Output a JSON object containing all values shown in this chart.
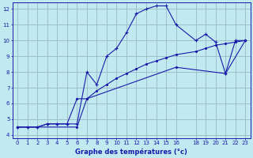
{
  "title": "Graphe des températures (°c)",
  "bg_color": "#c0eaf0",
  "grid_color": "#9ab8c8",
  "line_color": "#1a1aaa",
  "xlim": [
    -0.5,
    23.5
  ],
  "ylim": [
    3.8,
    12.4
  ],
  "xticks": [
    0,
    1,
    2,
    3,
    4,
    5,
    6,
    7,
    8,
    9,
    10,
    11,
    12,
    13,
    14,
    15,
    16,
    18,
    19,
    20,
    21,
    22,
    23
  ],
  "yticks": [
    4,
    5,
    6,
    7,
    8,
    9,
    10,
    11,
    12
  ],
  "line1_x": [
    0,
    1,
    2,
    3,
    4,
    5,
    6,
    7,
    8,
    9,
    10,
    11,
    12,
    13,
    14,
    15,
    16,
    18,
    19,
    20,
    21,
    22,
    23
  ],
  "line1_y": [
    4.5,
    4.5,
    4.5,
    4.7,
    4.7,
    4.7,
    4.7,
    8.0,
    7.2,
    9.0,
    9.5,
    10.5,
    11.7,
    12.0,
    12.2,
    12.2,
    11.0,
    10.0,
    10.4,
    9.9,
    7.9,
    10.0,
    10.0
  ],
  "line2_x": [
    0,
    1,
    2,
    3,
    4,
    5,
    6,
    7,
    8,
    9,
    10,
    11,
    12,
    13,
    14,
    15,
    16,
    18,
    19,
    20,
    21,
    22,
    23
  ],
  "line2_y": [
    4.5,
    4.5,
    4.5,
    4.7,
    4.7,
    4.7,
    6.3,
    6.3,
    6.8,
    7.2,
    7.6,
    7.9,
    8.2,
    8.5,
    8.7,
    8.9,
    9.1,
    9.3,
    9.5,
    9.7,
    9.8,
    9.9,
    10.0
  ],
  "line3_x": [
    0,
    6,
    7,
    16,
    21,
    23
  ],
  "line3_y": [
    4.5,
    4.5,
    6.3,
    8.3,
    7.9,
    10.0
  ]
}
